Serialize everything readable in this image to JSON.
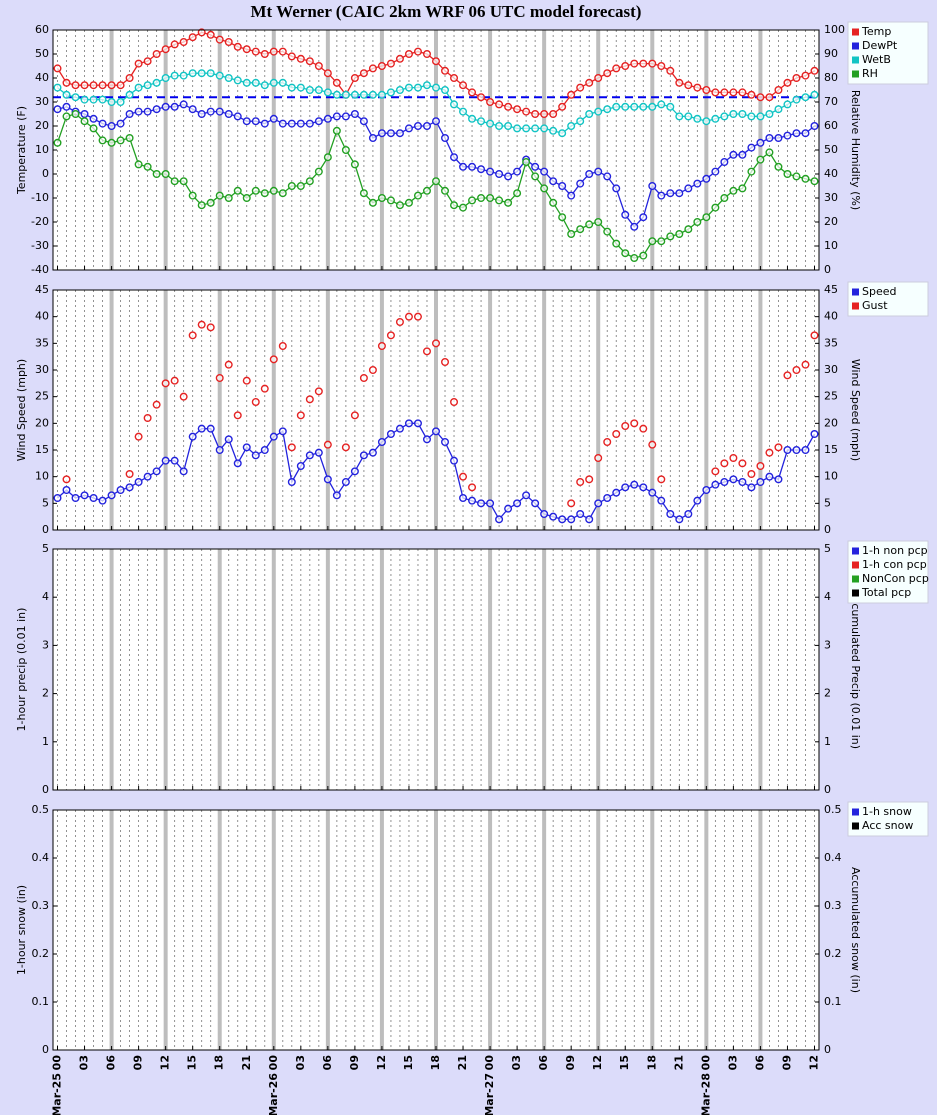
{
  "title": "Mt Werner (CAIC 2km WRF 06 UTC model forecast)",
  "x_axis": {
    "xlim": [
      -0.5,
      84.5
    ],
    "x": [
      0,
      1,
      2,
      3,
      4,
      5,
      6,
      7,
      8,
      9,
      10,
      11,
      12,
      13,
      14,
      15,
      16,
      17,
      18,
      19,
      20,
      21,
      22,
      23,
      24,
      25,
      26,
      27,
      28,
      29,
      30,
      31,
      32,
      33,
      34,
      35,
      36,
      37,
      38,
      39,
      40,
      41,
      42,
      43,
      44,
      45,
      46,
      47,
      48,
      49,
      50,
      51,
      52,
      53,
      54,
      55,
      56,
      57,
      58,
      59,
      60,
      61,
      62,
      63,
      64,
      65,
      66,
      67,
      68,
      69,
      70,
      71,
      72,
      73,
      74,
      75,
      76,
      77,
      78,
      79,
      80,
      81,
      82,
      83,
      84
    ],
    "xticks": [
      {
        "value": 0,
        "label": "00"
      },
      {
        "value": 3,
        "label": "03"
      },
      {
        "value": 6,
        "label": "06"
      },
      {
        "value": 9,
        "label": "09"
      },
      12,
      15,
      18,
      21,
      {
        "value": 24,
        "label": "00"
      },
      {
        "value": 27,
        "label": "03"
      },
      {
        "value": 30,
        "label": "06"
      },
      {
        "value": 33,
        "label": "09"
      },
      {
        "value": 36,
        "label": "12"
      },
      {
        "value": 39,
        "label": "15"
      },
      {
        "value": 42,
        "label": "18"
      },
      {
        "value": 45,
        "label": "21"
      },
      {
        "value": 48,
        "label": "00"
      },
      {
        "value": 51,
        "label": "03"
      },
      {
        "value": 54,
        "label": "06"
      },
      {
        "value": 57,
        "label": "09"
      },
      {
        "value": 60,
        "label": "12"
      },
      {
        "value": 63,
        "label": "15"
      },
      {
        "value": 66,
        "label": "18"
      },
      {
        "value": 69,
        "label": "21"
      },
      {
        "value": 72,
        "label": "00"
      },
      {
        "value": 75,
        "label": "03"
      },
      {
        "value": 78,
        "label": "06"
      },
      {
        "value": 81,
        "label": "09"
      },
      {
        "value": 84,
        "label": "12"
      }
    ],
    "date_ticks": [
      {
        "value": 0,
        "label": "Mar-25"
      },
      {
        "value": 24,
        "label": "Mar-26"
      },
      {
        "value": 48,
        "label": "Mar-27"
      },
      {
        "value": 72,
        "label": "Mar-28"
      }
    ],
    "major_gridlines": [
      6,
      12,
      18,
      24,
      30,
      36,
      42,
      48,
      54,
      60,
      66,
      72,
      78
    ],
    "grid": true
  },
  "chart_data": [
    {
      "type": "line",
      "ylabel": "Temperature (F)",
      "y2label": "Relative Humidity (%)",
      "ylim": [
        -40,
        60
      ],
      "yticks": [
        -40,
        -30,
        -20,
        -10,
        0,
        10,
        20,
        30,
        40,
        50,
        60
      ],
      "y2lim": [
        0,
        100
      ],
      "y2ticks": [
        0,
        10,
        20,
        30,
        40,
        50,
        60,
        70,
        80,
        90,
        100
      ],
      "hlines": [
        {
          "value": 32,
          "color": "#0000ee"
        }
      ],
      "series": [
        {
          "name": "Temp",
          "color": "#e52222",
          "values": [
            44,
            38,
            37,
            37,
            37,
            37,
            37,
            37,
            40,
            46,
            47,
            50,
            52,
            54,
            55,
            57,
            59,
            58,
            56,
            55,
            53,
            52,
            51,
            50,
            51,
            51,
            49,
            48,
            47,
            45,
            42,
            38,
            33,
            40,
            42,
            44,
            45,
            46,
            48,
            50,
            51,
            50,
            47,
            43,
            40,
            37,
            34,
            32,
            30,
            29,
            28,
            27,
            26,
            25,
            25,
            25,
            28,
            33,
            36,
            38,
            40,
            42,
            44,
            45,
            46,
            46,
            46,
            45,
            43,
            38,
            37,
            36,
            35,
            34,
            34,
            34,
            34,
            33,
            32,
            32,
            35,
            38,
            40,
            41,
            43
          ]
        },
        {
          "name": "DewPt",
          "color": "#2222dd",
          "values": [
            27,
            28,
            26,
            25,
            23,
            21,
            20,
            21,
            25,
            26,
            26,
            27,
            28,
            28,
            29,
            27,
            25,
            26,
            26,
            25,
            24,
            22,
            22,
            21,
            23,
            21,
            21,
            21,
            21,
            22,
            23,
            24,
            24,
            25,
            22,
            15,
            17,
            17,
            17,
            19,
            20,
            20,
            22,
            15,
            7,
            3,
            3,
            2,
            1,
            0,
            -1,
            1,
            6,
            3,
            1,
            -3,
            -5,
            -9,
            -4,
            0,
            1,
            -1,
            -6,
            -17,
            -22,
            -18,
            -5,
            -9,
            -8,
            -8,
            -6,
            -4,
            -2,
            1,
            5,
            8,
            8,
            11,
            13,
            15,
            15,
            16,
            17,
            17,
            20
          ]
        },
        {
          "name": "WetB",
          "color": "#11c4c4",
          "values": [
            36,
            33,
            32,
            31,
            31,
            31,
            30,
            30,
            33,
            36,
            37,
            38,
            40,
            41,
            41,
            42,
            42,
            42,
            41,
            40,
            39,
            38,
            38,
            37,
            38,
            38,
            36,
            36,
            35,
            35,
            34,
            33,
            33,
            33,
            33,
            33,
            33,
            34,
            35,
            36,
            36,
            37,
            36,
            35,
            29,
            26,
            23,
            22,
            21,
            20,
            20,
            19,
            19,
            19,
            19,
            18,
            17,
            20,
            22,
            25,
            26,
            27,
            28,
            28,
            28,
            28,
            28,
            29,
            28,
            24,
            24,
            23,
            22,
            23,
            24,
            25,
            25,
            24,
            24,
            25,
            27,
            29,
            31,
            32,
            33
          ]
        },
        {
          "name": "RH",
          "color": "#22a022",
          "axis": "y2",
          "values": [
            53,
            64,
            65,
            62,
            59,
            54,
            53,
            54,
            55,
            44,
            43,
            40,
            40,
            37,
            37,
            31,
            27,
            28,
            31,
            30,
            33,
            30,
            33,
            32,
            33,
            32,
            35,
            35,
            37,
            41,
            47,
            58,
            50,
            44,
            32,
            28,
            30,
            29,
            27,
            28,
            31,
            33,
            37,
            33,
            27,
            26,
            29,
            30,
            30,
            29,
            28,
            32,
            45,
            39,
            34,
            28,
            22,
            15,
            17,
            19,
            20,
            16,
            11,
            7,
            5,
            6,
            12,
            12,
            14,
            15,
            17,
            20,
            22,
            26,
            30,
            33,
            34,
            41,
            46,
            49,
            43,
            40,
            39,
            38,
            37
          ]
        }
      ]
    },
    {
      "type": "line",
      "ylabel": "Wind Speed (mph)",
      "y2label": "Wind Speed (mph)",
      "ylim": [
        0,
        45
      ],
      "yticks": [
        0,
        5,
        10,
        15,
        20,
        25,
        30,
        35,
        40,
        45
      ],
      "y2lim": [
        0,
        45
      ],
      "y2ticks": [
        0,
        5,
        10,
        15,
        20,
        25,
        30,
        35,
        40,
        45
      ],
      "series": [
        {
          "name": "Speed",
          "color": "#2222dd",
          "values": [
            6,
            7.5,
            6,
            6.5,
            6,
            5.5,
            6.5,
            7.5,
            8,
            9,
            10,
            11,
            13,
            13,
            11,
            17.5,
            19,
            19,
            15,
            17,
            12.5,
            15.5,
            14,
            15,
            17.5,
            18.5,
            9,
            12,
            14,
            14.5,
            9.5,
            6.5,
            9,
            11,
            14,
            14.5,
            16.5,
            18,
            19,
            20,
            20,
            17,
            18.5,
            16.5,
            13,
            6,
            5.5,
            5,
            5,
            2,
            4,
            5,
            6.5,
            5,
            3,
            2.5,
            2,
            2,
            3,
            2,
            5,
            6,
            7,
            8,
            8.5,
            8,
            7,
            5.5,
            3,
            2,
            3,
            5.5,
            7.5,
            8.5,
            9,
            9.5,
            9,
            8,
            9,
            10,
            9.5,
            15,
            15,
            15,
            18
          ]
        },
        {
          "name": "Gust",
          "color": "#e52222",
          "markers_only": true,
          "values": [
            null,
            9.5,
            null,
            null,
            null,
            null,
            null,
            null,
            10.5,
            17.5,
            21,
            23.5,
            27.5,
            28,
            25,
            36.5,
            38.5,
            38,
            28.5,
            31,
            21.5,
            28,
            24,
            26.5,
            32,
            34.5,
            15.5,
            21.5,
            24.5,
            26,
            16,
            null,
            15.5,
            21.5,
            28.5,
            30,
            34.5,
            36.5,
            39,
            40,
            40,
            33.5,
            35,
            31.5,
            24,
            10,
            8,
            null,
            null,
            null,
            null,
            null,
            null,
            null,
            null,
            null,
            null,
            5,
            9,
            9.5,
            13.5,
            16.5,
            18,
            19.5,
            20,
            19,
            16,
            9.5,
            null,
            null,
            null,
            null,
            null,
            11,
            12.5,
            13.5,
            12.5,
            10.5,
            12,
            14.5,
            15.5,
            29,
            30,
            31,
            36.5
          ]
        }
      ]
    },
    {
      "type": "bar",
      "ylabel": "1-hour precip (0.01 in)",
      "y2label": "Accumulated Precip (0.01 in)",
      "ylim": [
        0,
        5
      ],
      "yticks": [
        0,
        1,
        2,
        3,
        4,
        5
      ],
      "y2lim": [
        0,
        5
      ],
      "y2ticks": [
        0,
        1,
        2,
        3,
        4,
        5
      ],
      "series": [
        {
          "name": "1-h non pcp",
          "color": "#2222dd"
        },
        {
          "name": "1-h con pcp",
          "color": "#e52222"
        },
        {
          "name": "NonCon pcp",
          "color": "#22a022"
        },
        {
          "name": "Total pcp",
          "color": "#000000"
        }
      ]
    },
    {
      "type": "bar",
      "ylabel": "1-hour snow (in)",
      "y2label": "Accumulated snow (in)",
      "ylim": [
        0,
        0.5
      ],
      "yticks": [
        0,
        0.1,
        0.2,
        0.3,
        0.4,
        0.5
      ],
      "y2lim": [
        0,
        0.5
      ],
      "y2ticks": [
        0,
        0.1,
        0.2,
        0.3,
        0.4,
        0.5
      ],
      "series": [
        {
          "name": "1-h snow",
          "color": "#2222dd"
        },
        {
          "name": "Acc snow",
          "color": "#000000"
        }
      ]
    }
  ]
}
